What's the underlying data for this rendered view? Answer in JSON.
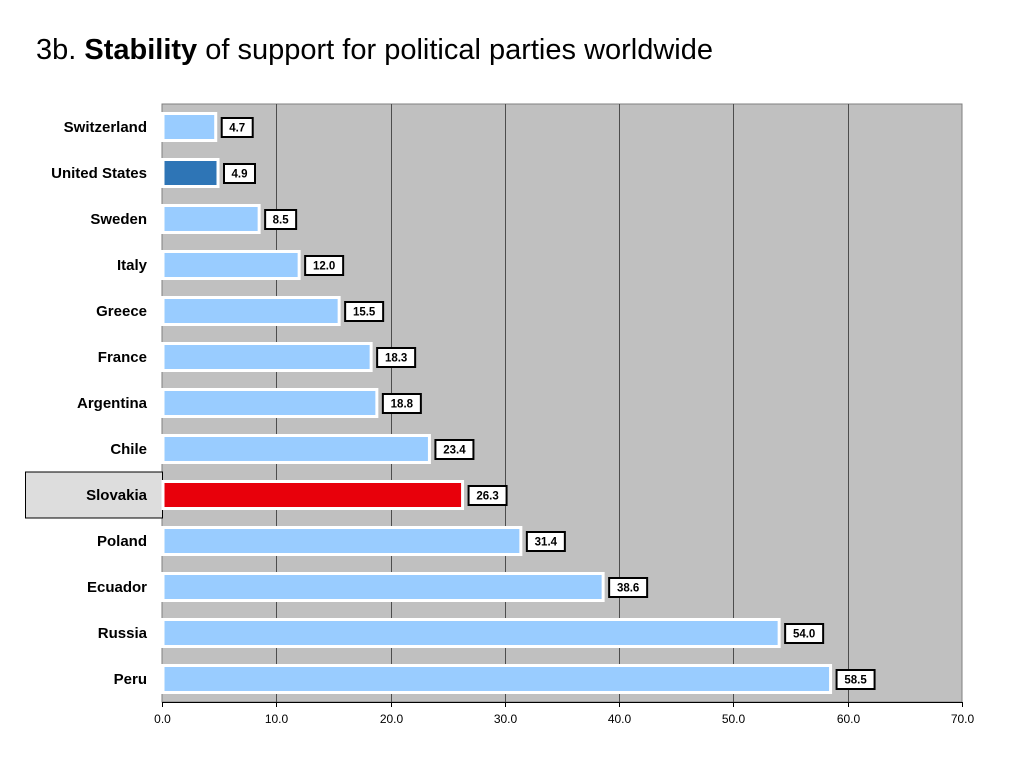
{
  "title": {
    "prefix": "3b.",
    "emphasis": "Stability",
    "rest": "of support for political parties worldwide"
  },
  "chart_data": {
    "type": "bar",
    "orientation": "horizontal",
    "title": "3b. Stability of support for political parties worldwide",
    "categories": [
      "Switzerland",
      "United States",
      "Sweden",
      "Italy",
      "Greece",
      "France",
      "Argentina",
      "Chile",
      "Slovakia",
      "Poland",
      "Ecuador",
      "Russia",
      "Peru"
    ],
    "values": [
      4.7,
      4.9,
      8.5,
      12.0,
      15.5,
      18.3,
      18.8,
      23.4,
      26.3,
      31.4,
      38.6,
      54.0,
      58.5
    ],
    "value_labels": [
      "4.7",
      "4.9",
      "8.5",
      "12.0",
      "15.5",
      "18.3",
      "18.8",
      "23.4",
      "26.3",
      "31.4",
      "38.6",
      "54.0",
      "58.5"
    ],
    "xlim": [
      0,
      70
    ],
    "xticks": [
      0,
      10,
      20,
      30,
      40,
      50,
      60,
      70
    ],
    "xtick_labels": [
      "0.0",
      "10.0",
      "20.0",
      "30.0",
      "40.0",
      "50.0",
      "60.0",
      "70.0"
    ],
    "xlabel": "",
    "ylabel": "",
    "grid": true,
    "highlighted": "Slovakia",
    "colors": {
      "default_bar": "#99ccff",
      "united_states_bar": "#2e75b6",
      "slovakia_bar": "#e8000b",
      "plot_background": "#c0c0c0",
      "highlight_label_bg": "#dddddd"
    }
  }
}
